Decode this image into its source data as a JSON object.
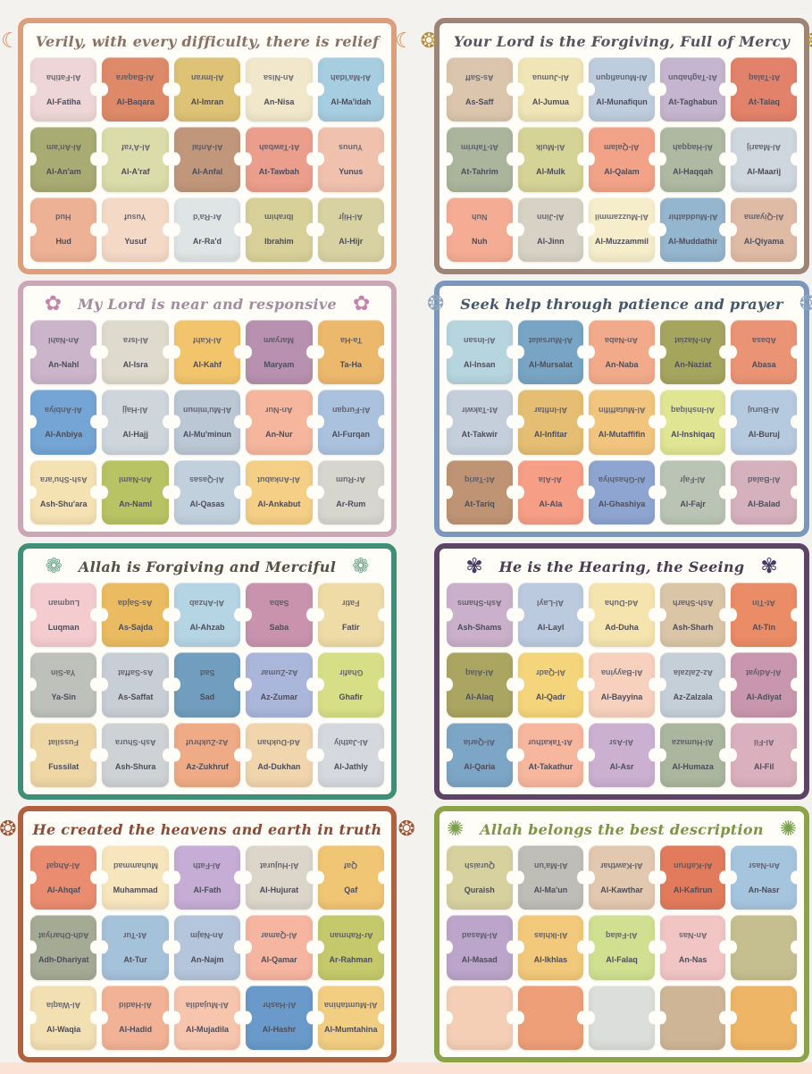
{
  "page": {
    "background": "#f4f2ee",
    "bottom_strip_color": "#fbe2d5",
    "panel_background": "#fffdf8"
  },
  "panels": [
    {
      "title": "Verily, with every difficulty, there is relief",
      "icon_name": "crescent-moon-icon",
      "icon_glyph": "☾",
      "icon_color": "#d8884f",
      "border_color": "#dd9e7b",
      "title_color": "#8b7063",
      "cards": [
        {
          "name": "Al-Fatiha",
          "color": "#eed6d6"
        },
        {
          "name": "Al-Baqara",
          "color": "#de8a69"
        },
        {
          "name": "Al-Imran",
          "color": "#dec275"
        },
        {
          "name": "An-Nisa",
          "color": "#f1e8cb"
        },
        {
          "name": "Al-Ma'idah",
          "color": "#a6cde0"
        },
        {
          "name": "Al-An'am",
          "color": "#a8ab72"
        },
        {
          "name": "Al-A'raf",
          "color": "#dadcaa"
        },
        {
          "name": "Al-Anfal",
          "color": "#c0977b"
        },
        {
          "name": "At-Tawbah",
          "color": "#eb9e8b"
        },
        {
          "name": "Yunus",
          "color": "#f0c2ae"
        },
        {
          "name": "Hud",
          "color": "#edb295"
        },
        {
          "name": "Yusuf",
          "color": "#f4d9c6"
        },
        {
          "name": "Ar-Ra'd",
          "color": "#dfe4e5"
        },
        {
          "name": "Ibrahim",
          "color": "#d7d098"
        },
        {
          "name": "Al-Hijr",
          "color": "#d8d2a2"
        }
      ]
    },
    {
      "title": "Your Lord is the Forgiving, Full of Mercy",
      "icon_name": "gold-medallion-icon",
      "icon_glyph": "❂",
      "icon_color": "#b08d3e",
      "border_color": "#9c8577",
      "title_color": "#57525e",
      "cards": [
        {
          "name": "As-Saff",
          "color": "#dbc6ad"
        },
        {
          "name": "Al-Jumua",
          "color": "#efe5b6"
        },
        {
          "name": "Al-Munafiqun",
          "color": "#becddd"
        },
        {
          "name": "At-Taghabun",
          "color": "#c5b5ce"
        },
        {
          "name": "At-Talaq",
          "color": "#e2826a"
        },
        {
          "name": "At-Tahrim",
          "color": "#abb59c"
        },
        {
          "name": "Al-Mulk",
          "color": "#d5d396"
        },
        {
          "name": "Al-Qalam",
          "color": "#f2a387"
        },
        {
          "name": "Al-Haqqah",
          "color": "#afb9a1"
        },
        {
          "name": "Al-Maarij",
          "color": "#ced6de"
        },
        {
          "name": "Nuh",
          "color": "#f4ad94"
        },
        {
          "name": "Al-Jinn",
          "color": "#d7d2c5"
        },
        {
          "name": "Al-Muzzammil",
          "color": "#f6eecb"
        },
        {
          "name": "Al-Muddathir",
          "color": "#94b6ce"
        },
        {
          "name": "Al-Qiyama",
          "color": "#dfbba6"
        }
      ]
    },
    {
      "title": "My Lord is near and responsive",
      "icon_name": "pink-rosette-icon",
      "icon_glyph": "✿",
      "icon_color": "#c583ab",
      "border_color": "#cba6b7",
      "title_color": "#a38ba0",
      "cards": [
        {
          "name": "An-Nahl",
          "color": "#cbb5cb"
        },
        {
          "name": "Al-Isra",
          "color": "#dedacd"
        },
        {
          "name": "Al-Kahf",
          "color": "#f2c56d"
        },
        {
          "name": "Maryam",
          "color": "#b791af"
        },
        {
          "name": "Ta-Ha",
          "color": "#ecb86c"
        },
        {
          "name": "Al-Anbiya",
          "color": "#75a5d5"
        },
        {
          "name": "Al-Hajj",
          "color": "#ced6dc"
        },
        {
          "name": "Al-Mu'minun",
          "color": "#bbc7d4"
        },
        {
          "name": "An-Nur",
          "color": "#f5b69d"
        },
        {
          "name": "Al-Furqan",
          "color": "#aac2de"
        },
        {
          "name": "Ash-Shu'ara",
          "color": "#f5e2b2"
        },
        {
          "name": "An-Naml",
          "color": "#b8c364"
        },
        {
          "name": "Al-Qasas",
          "color": "#c1d0dd"
        },
        {
          "name": "Al-Ankabut",
          "color": "#f4cf85"
        },
        {
          "name": "Ar-Rum",
          "color": "#d6d6ce"
        }
      ]
    },
    {
      "title": "Seek help through patience and prayer",
      "icon_name": "blue-ornament-icon",
      "icon_glyph": "❂",
      "icon_color": "#8fa8c0",
      "border_color": "#7b98bc",
      "title_color": "#44586b",
      "cards": [
        {
          "name": "Al-Insan",
          "color": "#b6d5de"
        },
        {
          "name": "Al-Mursalat",
          "color": "#78a5c4"
        },
        {
          "name": "An-Naba",
          "color": "#f2ab8a"
        },
        {
          "name": "An-Naziat",
          "color": "#a5a55e"
        },
        {
          "name": "Abasa",
          "color": "#ea9475"
        },
        {
          "name": "At-Takwir",
          "color": "#c5cfdb"
        },
        {
          "name": "Al-Infitar",
          "color": "#e5be73"
        },
        {
          "name": "Al-Mutaffifin",
          "color": "#f2c57e"
        },
        {
          "name": "Al-Inshiqaq",
          "color": "#dfe593"
        },
        {
          "name": "Al-Buruj",
          "color": "#b5c9df"
        },
        {
          "name": "At-Tariq",
          "color": "#bf9474"
        },
        {
          "name": "Al-Ala",
          "color": "#f69e86"
        },
        {
          "name": "Al-Ghashiya",
          "color": "#8ea5d1"
        },
        {
          "name": "Al-Fajr",
          "color": "#bac4b4"
        },
        {
          "name": "Al-Balad",
          "color": "#d5b0bd"
        }
      ]
    },
    {
      "title": "Allah is Forgiving and Merciful",
      "icon_name": "green-medallion-icon",
      "icon_glyph": "❁",
      "icon_color": "#6fa08e",
      "border_color": "#3f8f78",
      "title_color": "#545045",
      "cards": [
        {
          "name": "Luqman",
          "color": "#f4cccf"
        },
        {
          "name": "As-Sajda",
          "color": "#eabb60"
        },
        {
          "name": "Al-Ahzab",
          "color": "#b5d5e5"
        },
        {
          "name": "Saba",
          "color": "#c993ad"
        },
        {
          "name": "Fatir",
          "color": "#efdba5"
        },
        {
          "name": "Ya-Sin",
          "color": "#bec1bb"
        },
        {
          "name": "As-Saffat",
          "color": "#c8ced5"
        },
        {
          "name": "Sad",
          "color": "#719ebe"
        },
        {
          "name": "Az-Zumar",
          "color": "#abb6db"
        },
        {
          "name": "Ghafir",
          "color": "#d7df86"
        },
        {
          "name": "Fussilat",
          "color": "#eed7a5"
        },
        {
          "name": "Ash-Shura",
          "color": "#ced2d5"
        },
        {
          "name": "Az-Zukhruf",
          "color": "#efab85"
        },
        {
          "name": "Ad-Dukhan",
          "color": "#f0d5ad"
        },
        {
          "name": "Al-Jathly",
          "color": "#d5d9de"
        }
      ]
    },
    {
      "title": "He is the Hearing, the Seeing",
      "icon_name": "purple-rosette-icon",
      "icon_glyph": "✾",
      "icon_color": "#463a68",
      "border_color": "#5d4466",
      "title_color": "#4a3d52",
      "cards": [
        {
          "name": "Ash-Shams",
          "color": "#cab0ca"
        },
        {
          "name": "Al-Layl",
          "color": "#bbcadf"
        },
        {
          "name": "Ad-Duha",
          "color": "#f5e4ae"
        },
        {
          "name": "Ash-Sharh",
          "color": "#dac5a6"
        },
        {
          "name": "At-Tin",
          "color": "#ea8c66"
        },
        {
          "name": "Al-Alaq",
          "color": "#aaa561"
        },
        {
          "name": "Al-Qadr",
          "color": "#f5d57b"
        },
        {
          "name": "Al-Bayyina",
          "color": "#f7d1be"
        },
        {
          "name": "Az-Zalzala",
          "color": "#c5cfd8"
        },
        {
          "name": "Al-Adiyat",
          "color": "#c997ad"
        },
        {
          "name": "Al-Qaria",
          "color": "#7da5c5"
        },
        {
          "name": "At-Takathur",
          "color": "#f7b69e"
        },
        {
          "name": "Al-Asr",
          "color": "#cbb0d2"
        },
        {
          "name": "Al-Humaza",
          "color": "#abb69e"
        },
        {
          "name": "Al-Fil",
          "color": "#dbb0be"
        }
      ]
    },
    {
      "title": "He created the heavens and earth in truth",
      "icon_name": "rust-medallion-icon",
      "icon_glyph": "❂",
      "icon_color": "#9e5535",
      "border_color": "#b2613f",
      "title_color": "#8b4a33",
      "cards": [
        {
          "name": "Al-Ahqaf",
          "color": "#ea8c6f"
        },
        {
          "name": "Muhammad",
          "color": "#f7e5be"
        },
        {
          "name": "Al-Fath",
          "color": "#c5add5"
        },
        {
          "name": "Al-Hujurat",
          "color": "#dbd5ca"
        },
        {
          "name": "Qaf",
          "color": "#f0c573"
        },
        {
          "name": "Adh-Dhariyat",
          "color": "#a5aa95"
        },
        {
          "name": "At-Tur",
          "color": "#a5c2db"
        },
        {
          "name": "An-Najm",
          "color": "#b5c5db"
        },
        {
          "name": "Al-Qamar",
          "color": "#f5b5a0"
        },
        {
          "name": "Ar-Rahman",
          "color": "#c5c96c"
        },
        {
          "name": "Al-Waqia",
          "color": "#f2dfb2"
        },
        {
          "name": "Al-Hadid",
          "color": "#f2b295"
        },
        {
          "name": "Al-Mujadila",
          "color": "#f7c5ad"
        },
        {
          "name": "Al-Hashr",
          "color": "#699aca"
        },
        {
          "name": "Al-Mumtahina",
          "color": "#f2ce82"
        }
      ]
    },
    {
      "title": "Allah belongs the best description",
      "icon_name": "green-star-icon",
      "icon_glyph": "✺",
      "icon_color": "#7da050",
      "border_color": "#8ba447",
      "title_color": "#7d9447",
      "cards": [
        {
          "name": "Quraish",
          "color": "#d7d1a0"
        },
        {
          "name": "Al-Ma'un",
          "color": "#bebeb6"
        },
        {
          "name": "Al-Kawthar",
          "color": "#e2c8ae"
        },
        {
          "name": "Al-Kafirun",
          "color": "#e27b5c"
        },
        {
          "name": "An-Nasr",
          "color": "#a5c5df"
        },
        {
          "name": "Al-Masad",
          "color": "#bba5ca"
        },
        {
          "name": "Al-Ikhlas",
          "color": "#f2c87a"
        },
        {
          "name": "Al-Falaq",
          "color": "#d0e090"
        },
        {
          "name": "An-Nas",
          "color": "#f2c5c5"
        },
        {
          "name": "",
          "color": "#c5bf90"
        },
        {
          "name": "",
          "color": "#f5cfb5"
        },
        {
          "name": "",
          "color": "#ee9f78"
        },
        {
          "name": "",
          "color": "#dbdedb"
        },
        {
          "name": "",
          "color": "#ceb595"
        },
        {
          "name": "",
          "color": "#eeb567"
        }
      ]
    }
  ]
}
